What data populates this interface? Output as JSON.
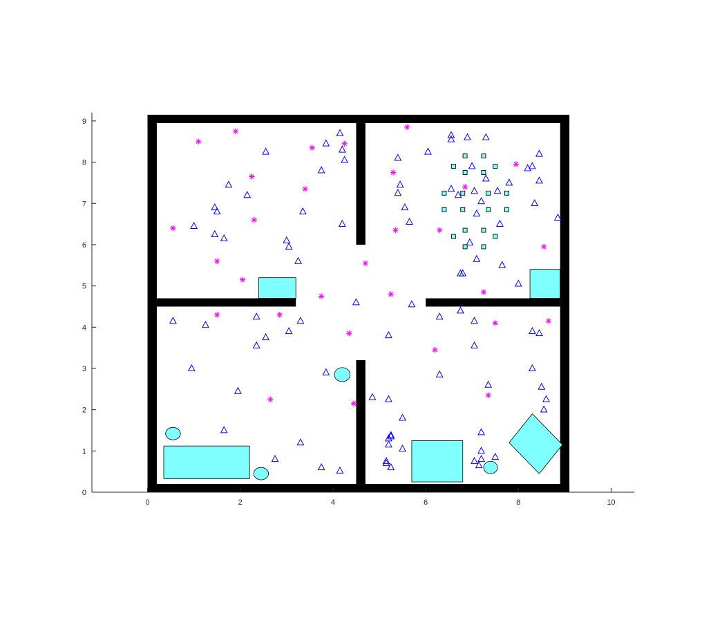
{
  "chart_data": {
    "type": "scatter",
    "title": "",
    "xlabel": "",
    "ylabel": "",
    "xlim": [
      -1.2,
      10.5
    ],
    "ylim": [
      0,
      9.2
    ],
    "xticks": [
      0,
      2,
      4,
      6,
      8,
      10
    ],
    "yticks": [
      0,
      1,
      2,
      3,
      4,
      5,
      6,
      7,
      8,
      9
    ],
    "xtick_labels": [
      "0",
      "2",
      "4",
      "6",
      "8",
      "10"
    ],
    "ytick_labels": [
      "0",
      "1",
      "2",
      "3",
      "4",
      "5",
      "6",
      "7",
      "8",
      "9"
    ],
    "grid": false,
    "legend": "none",
    "walls": [
      {
        "x0": 0.0,
        "y0": 0.0,
        "x1": 9.1,
        "y1": 0.2
      },
      {
        "x0": 0.0,
        "y0": 8.95,
        "x1": 9.1,
        "y1": 9.15
      },
      {
        "x0": 0.0,
        "y0": 0.0,
        "x1": 0.2,
        "y1": 9.15
      },
      {
        "x0": 8.9,
        "y0": 0.0,
        "x1": 9.1,
        "y1": 9.15
      },
      {
        "x0": 4.5,
        "y0": 0.2,
        "x1": 4.7,
        "y1": 3.2
      },
      {
        "x0": 4.5,
        "y0": 6.0,
        "x1": 4.7,
        "y1": 8.95
      },
      {
        "x0": 0.2,
        "y0": 4.5,
        "x1": 3.2,
        "y1": 4.7
      },
      {
        "x0": 6.0,
        "y0": 4.5,
        "x1": 8.9,
        "y1": 4.7
      }
    ],
    "obstacle_color": "#80ffff",
    "rect_obstacles": [
      {
        "x0": 2.4,
        "y0": 4.7,
        "x1": 3.2,
        "y1": 5.2
      },
      {
        "x0": 8.25,
        "y0": 4.7,
        "x1": 8.9,
        "y1": 5.4
      },
      {
        "x0": 0.35,
        "y0": 0.33,
        "x1": 2.2,
        "y1": 1.12
      },
      {
        "x0": 5.7,
        "y0": 0.25,
        "x1": 6.8,
        "y1": 1.25
      }
    ],
    "ellipse_obstacles": [
      {
        "cx": 0.55,
        "cy": 1.42,
        "rx": 0.16,
        "ry": 0.15
      },
      {
        "cx": 2.45,
        "cy": 0.45,
        "rx": 0.16,
        "ry": 0.15
      },
      {
        "cx": 4.2,
        "cy": 2.85,
        "rx": 0.17,
        "ry": 0.17
      },
      {
        "cx": 7.4,
        "cy": 0.6,
        "rx": 0.15,
        "ry": 0.15
      }
    ],
    "poly_obstacles": [
      {
        "points": [
          [
            7.8,
            1.2
          ],
          [
            8.3,
            1.9
          ],
          [
            8.95,
            1.15
          ],
          [
            8.45,
            0.45
          ]
        ]
      }
    ],
    "series": [
      {
        "marker": "triangle",
        "color": "#0000ff",
        "points": [
          [
            0.55,
            4.15
          ],
          [
            1.0,
            6.45
          ],
          [
            1.25,
            4.05
          ],
          [
            0.95,
            3.0
          ],
          [
            1.45,
            6.9
          ],
          [
            1.5,
            6.8
          ],
          [
            1.45,
            6.25
          ],
          [
            1.65,
            6.15
          ],
          [
            1.75,
            7.45
          ],
          [
            1.95,
            2.45
          ],
          [
            1.65,
            1.5
          ],
          [
            2.15,
            7.2
          ],
          [
            2.35,
            4.25
          ],
          [
            2.35,
            3.55
          ],
          [
            2.55,
            8.25
          ],
          [
            2.55,
            3.75
          ],
          [
            2.75,
            0.8
          ],
          [
            3.0,
            6.1
          ],
          [
            3.05,
            5.95
          ],
          [
            3.05,
            3.9
          ],
          [
            3.25,
            5.6
          ],
          [
            3.3,
            4.15
          ],
          [
            3.35,
            6.8
          ],
          [
            3.3,
            1.2
          ],
          [
            3.75,
            7.8
          ],
          [
            3.85,
            8.45
          ],
          [
            3.85,
            2.9
          ],
          [
            3.75,
            0.6
          ],
          [
            4.15,
            8.7
          ],
          [
            4.2,
            8.3
          ],
          [
            4.25,
            8.05
          ],
          [
            4.2,
            6.5
          ],
          [
            4.15,
            0.52
          ],
          [
            4.5,
            4.6
          ],
          [
            4.85,
            2.3
          ],
          [
            5.15,
            0.75
          ],
          [
            5.15,
            0.7
          ],
          [
            5.2,
            2.25
          ],
          [
            5.2,
            1.3
          ],
          [
            5.25,
            1.35
          ],
          [
            5.25,
            1.38
          ],
          [
            5.2,
            1.15
          ],
          [
            5.25,
            0.6
          ],
          [
            5.2,
            3.8
          ],
          [
            5.4,
            8.1
          ],
          [
            5.4,
            7.25
          ],
          [
            5.45,
            7.45
          ],
          [
            5.5,
            1.8
          ],
          [
            5.5,
            1.05
          ],
          [
            5.55,
            6.9
          ],
          [
            5.65,
            6.55
          ],
          [
            5.7,
            4.55
          ],
          [
            6.05,
            8.25
          ],
          [
            6.3,
            4.25
          ],
          [
            6.3,
            2.85
          ],
          [
            6.55,
            8.65
          ],
          [
            6.55,
            8.55
          ],
          [
            6.55,
            7.35
          ],
          [
            6.7,
            7.2
          ],
          [
            6.75,
            5.3
          ],
          [
            6.8,
            5.3
          ],
          [
            6.75,
            4.4
          ],
          [
            6.9,
            8.6
          ],
          [
            6.95,
            6.05
          ],
          [
            7.0,
            7.9
          ],
          [
            7.05,
            7.3
          ],
          [
            7.05,
            4.15
          ],
          [
            7.05,
            3.55
          ],
          [
            7.1,
            5.65
          ],
          [
            7.1,
            6.75
          ],
          [
            7.2,
            7.05
          ],
          [
            7.2,
            1.45
          ],
          [
            7.2,
            1.0
          ],
          [
            7.2,
            0.8
          ],
          [
            7.05,
            0.75
          ],
          [
            7.15,
            0.65
          ],
          [
            7.3,
            8.6
          ],
          [
            7.3,
            7.6
          ],
          [
            7.35,
            2.6
          ],
          [
            7.5,
            0.85
          ],
          [
            7.55,
            7.3
          ],
          [
            7.6,
            6.5
          ],
          [
            7.65,
            5.5
          ],
          [
            7.8,
            7.5
          ],
          [
            8.0,
            5.05
          ],
          [
            8.2,
            7.85
          ],
          [
            8.3,
            7.9
          ],
          [
            8.3,
            3.0
          ],
          [
            8.3,
            3.9
          ],
          [
            8.35,
            7.0
          ],
          [
            8.45,
            3.85
          ],
          [
            8.45,
            7.55
          ],
          [
            8.45,
            8.2
          ],
          [
            8.5,
            2.55
          ],
          [
            8.55,
            2.0
          ],
          [
            8.6,
            2.25
          ],
          [
            8.85,
            6.65
          ]
        ]
      },
      {
        "marker": "asterisk",
        "color": "#ff00ff",
        "points": [
          [
            0.55,
            6.4
          ],
          [
            1.1,
            8.5
          ],
          [
            1.5,
            5.6
          ],
          [
            1.5,
            4.3
          ],
          [
            1.9,
            8.75
          ],
          [
            2.05,
            5.15
          ],
          [
            2.25,
            7.65
          ],
          [
            2.3,
            6.6
          ],
          [
            2.65,
            2.25
          ],
          [
            2.85,
            4.3
          ],
          [
            3.4,
            7.35
          ],
          [
            3.55,
            8.35
          ],
          [
            3.75,
            4.75
          ],
          [
            4.25,
            8.45
          ],
          [
            4.35,
            3.85
          ],
          [
            4.45,
            2.15
          ],
          [
            4.7,
            5.55
          ],
          [
            5.25,
            4.8
          ],
          [
            5.3,
            7.75
          ],
          [
            5.35,
            6.35
          ],
          [
            5.6,
            8.85
          ],
          [
            6.2,
            3.45
          ],
          [
            6.3,
            6.35
          ],
          [
            6.85,
            7.4
          ],
          [
            7.25,
            4.85
          ],
          [
            7.35,
            2.35
          ],
          [
            7.5,
            4.1
          ],
          [
            7.95,
            7.95
          ],
          [
            8.55,
            5.95
          ],
          [
            8.65,
            4.15
          ]
        ]
      },
      {
        "marker": "square",
        "color": "#000000",
        "fill": "#80ffff",
        "points": [
          [
            6.85,
            8.15
          ],
          [
            7.25,
            8.15
          ],
          [
            6.6,
            7.9
          ],
          [
            6.85,
            7.75
          ],
          [
            7.25,
            7.75
          ],
          [
            7.5,
            7.9
          ],
          [
            6.4,
            7.25
          ],
          [
            6.8,
            7.25
          ],
          [
            7.35,
            7.25
          ],
          [
            7.75,
            7.25
          ],
          [
            6.4,
            6.85
          ],
          [
            6.8,
            6.85
          ],
          [
            7.35,
            6.85
          ],
          [
            7.75,
            6.85
          ],
          [
            6.85,
            6.35
          ],
          [
            7.25,
            6.35
          ],
          [
            6.6,
            6.2
          ],
          [
            7.5,
            6.2
          ],
          [
            6.85,
            5.95
          ],
          [
            7.25,
            5.95
          ]
        ]
      }
    ]
  }
}
